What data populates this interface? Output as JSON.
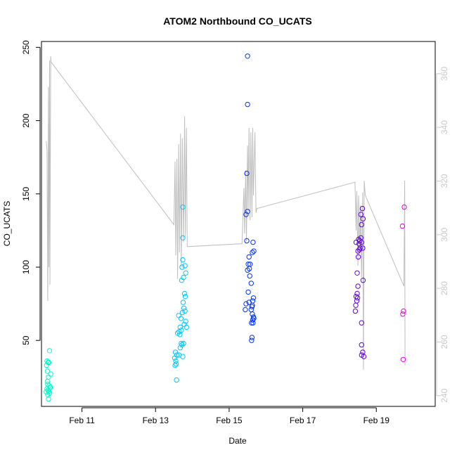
{
  "chart_data": {
    "type": "scatter",
    "title": "ATOM2 Northbound CO_UCATS",
    "xlabel": "Date",
    "ylabel": "CO_UCATS",
    "x_ticks": [
      {
        "value": 11,
        "label": "Feb 11"
      },
      {
        "value": 13,
        "label": "Feb 13"
      },
      {
        "value": 15,
        "label": "Feb 15"
      },
      {
        "value": 17,
        "label": "Feb 17"
      },
      {
        "value": 19,
        "label": "Feb 19"
      }
    ],
    "xlim": [
      9.9,
      20.6
    ],
    "ylim": [
      5,
      254
    ],
    "y_ticks": [
      50,
      100,
      150,
      200,
      250
    ],
    "y2_ticks": [
      240,
      260,
      280,
      300,
      320,
      340,
      360
    ],
    "y2lim": [
      236,
      372
    ],
    "grid": false,
    "legend": "none",
    "colors": {
      "axis": "#000000",
      "secondary_axis": "#c8c8c8",
      "line": "#bebebe",
      "group1": "#00ffc8",
      "group2": "#00c8ff",
      "group3": "#0032ff",
      "group4": "#6400dc",
      "group5": "#e600e6"
    },
    "series": [
      {
        "color": "#00ffc8",
        "points": [
          [
            10.12,
            43
          ],
          [
            10.05,
            36
          ],
          [
            10.08,
            35
          ],
          [
            10.1,
            35
          ],
          [
            10.04,
            33
          ],
          [
            10.15,
            27
          ],
          [
            10.06,
            29
          ],
          [
            10.09,
            25
          ],
          [
            10.07,
            20
          ],
          [
            10.11,
            19
          ],
          [
            10.13,
            18
          ],
          [
            10.05,
            17
          ],
          [
            10.08,
            16
          ],
          [
            10.1,
            15
          ],
          [
            10.03,
            15
          ],
          [
            10.12,
            14
          ],
          [
            10.07,
            13
          ],
          [
            10.09,
            10
          ],
          [
            10.06,
            22
          ],
          [
            10.14,
            18
          ]
        ]
      },
      {
        "color": "#00c8ff",
        "points": [
          [
            13.74,
            141
          ],
          [
            13.74,
            120
          ],
          [
            13.74,
            105
          ],
          [
            13.8,
            101
          ],
          [
            13.72,
            100
          ],
          [
            13.82,
            96
          ],
          [
            13.76,
            93
          ],
          [
            13.71,
            91
          ],
          [
            13.79,
            82
          ],
          [
            13.81,
            80
          ],
          [
            13.75,
            76
          ],
          [
            13.77,
            72
          ],
          [
            13.8,
            70
          ],
          [
            13.73,
            69
          ],
          [
            13.63,
            67
          ],
          [
            13.69,
            65
          ],
          [
            13.82,
            63
          ],
          [
            13.78,
            61
          ],
          [
            13.84,
            59
          ],
          [
            13.7,
            57
          ],
          [
            13.64,
            56
          ],
          [
            13.6,
            55
          ],
          [
            13.66,
            54
          ],
          [
            13.76,
            48
          ],
          [
            13.72,
            47
          ],
          [
            13.67,
            45
          ],
          [
            13.54,
            42
          ],
          [
            13.58,
            40
          ],
          [
            13.64,
            40
          ],
          [
            13.74,
            39
          ],
          [
            13.52,
            38
          ],
          [
            13.55,
            36
          ],
          [
            13.56,
            34
          ],
          [
            13.53,
            33
          ],
          [
            13.57,
            23
          ],
          [
            13.67,
            59
          ],
          [
            13.7,
            48
          ]
        ]
      },
      {
        "color": "#0032ff",
        "points": [
          [
            15.5,
            244
          ],
          [
            15.5,
            211
          ],
          [
            15.48,
            164
          ],
          [
            15.5,
            138
          ],
          [
            15.46,
            136
          ],
          [
            15.48,
            118
          ],
          [
            15.65,
            117
          ],
          [
            15.63,
            110
          ],
          [
            15.67,
            111
          ],
          [
            15.54,
            107
          ],
          [
            15.52,
            102
          ],
          [
            15.57,
            102
          ],
          [
            15.55,
            99
          ],
          [
            15.5,
            98
          ],
          [
            15.56,
            94
          ],
          [
            15.6,
            89
          ],
          [
            15.52,
            83
          ],
          [
            15.54,
            76
          ],
          [
            15.66,
            79
          ],
          [
            15.64,
            77
          ],
          [
            15.63,
            74
          ],
          [
            15.62,
            73
          ],
          [
            15.6,
            71
          ],
          [
            15.66,
            66
          ],
          [
            15.64,
            64
          ],
          [
            15.61,
            62
          ],
          [
            15.65,
            62
          ],
          [
            15.46,
            75
          ],
          [
            15.44,
            71
          ],
          [
            15.62,
            52
          ],
          [
            15.61,
            50
          ],
          [
            15.67,
            65
          ],
          [
            15.63,
            68
          ]
        ]
      },
      {
        "color": "#6400dc",
        "points": [
          [
            18.62,
            140
          ],
          [
            18.58,
            136
          ],
          [
            18.64,
            133
          ],
          [
            18.6,
            129
          ],
          [
            18.52,
            119
          ],
          [
            18.55,
            118
          ],
          [
            18.6,
            117
          ],
          [
            18.45,
            117
          ],
          [
            18.63,
            113
          ],
          [
            18.56,
            113
          ],
          [
            18.5,
            111
          ],
          [
            18.54,
            112
          ],
          [
            18.51,
            107
          ],
          [
            18.48,
            96
          ],
          [
            18.64,
            91
          ],
          [
            18.5,
            87
          ],
          [
            18.48,
            82
          ],
          [
            18.45,
            80
          ],
          [
            18.49,
            79
          ],
          [
            18.47,
            77
          ],
          [
            18.44,
            74
          ],
          [
            18.43,
            70
          ],
          [
            18.6,
            62
          ],
          [
            18.6,
            47
          ],
          [
            18.63,
            42
          ],
          [
            18.6,
            40
          ],
          [
            18.66,
            39
          ],
          [
            18.58,
            120
          ],
          [
            18.53,
            116
          ]
        ]
      },
      {
        "color": "#e600e6",
        "points": [
          [
            19.76,
            141
          ],
          [
            19.71,
            128
          ],
          [
            19.74,
            70
          ],
          [
            19.72,
            68
          ],
          [
            19.73,
            37
          ]
        ]
      }
    ],
    "line": {
      "color": "#bebebe",
      "points": [
        [
          10.03,
          186
        ],
        [
          10.05,
          180
        ],
        [
          10.07,
          77
        ],
        [
          10.09,
          223
        ],
        [
          10.1,
          100
        ],
        [
          10.12,
          241
        ],
        [
          10.13,
          88
        ],
        [
          10.15,
          244
        ],
        [
          10.16,
          240
        ],
        [
          13.5,
          129
        ],
        [
          13.53,
          172
        ],
        [
          13.55,
          108
        ],
        [
          13.58,
          174
        ],
        [
          13.6,
          92
        ],
        [
          13.63,
          184
        ],
        [
          13.65,
          110
        ],
        [
          13.68,
          191
        ],
        [
          13.7,
          100
        ],
        [
          13.73,
          188
        ],
        [
          13.76,
          117
        ],
        [
          13.79,
          203
        ],
        [
          13.81,
          121
        ],
        [
          13.84,
          195
        ],
        [
          13.86,
          114
        ],
        [
          15.35,
          116
        ],
        [
          15.4,
          154
        ],
        [
          15.42,
          123
        ],
        [
          15.45,
          166
        ],
        [
          15.47,
          118
        ],
        [
          15.5,
          183
        ],
        [
          15.52,
          138
        ],
        [
          15.54,
          195
        ],
        [
          15.57,
          132
        ],
        [
          15.59,
          192
        ],
        [
          15.62,
          134
        ],
        [
          15.64,
          195
        ],
        [
          15.66,
          149
        ],
        [
          15.7,
          192
        ],
        [
          15.73,
          137
        ],
        [
          15.75,
          140
        ],
        [
          18.42,
          158
        ],
        [
          18.45,
          125
        ],
        [
          18.47,
          152
        ],
        [
          18.5,
          101
        ],
        [
          18.52,
          149
        ],
        [
          18.55,
          109
        ],
        [
          18.57,
          142
        ],
        [
          18.6,
          93
        ],
        [
          18.63,
          151
        ],
        [
          18.65,
          30
        ],
        [
          18.67,
          159
        ],
        [
          18.7,
          149
        ],
        [
          19.75,
          87
        ],
        [
          19.77,
          159
        ],
        [
          19.78,
          33
        ]
      ]
    }
  }
}
